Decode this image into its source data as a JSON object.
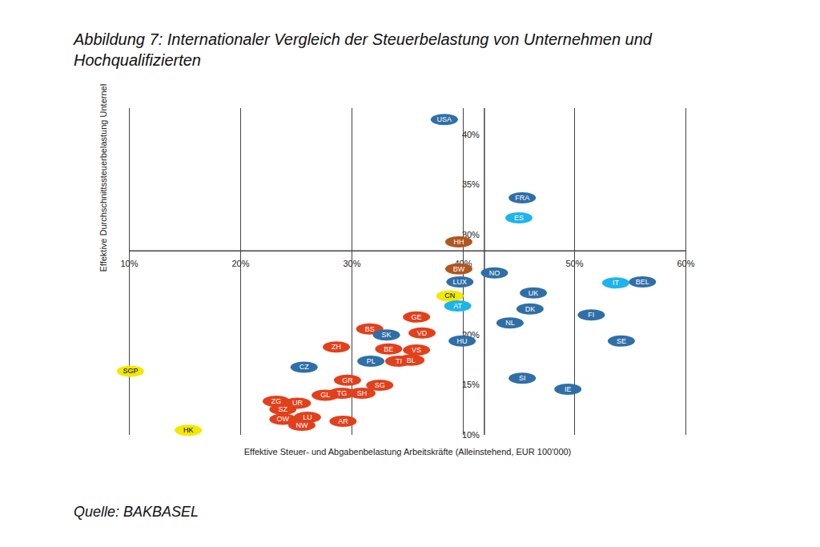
{
  "chart_data": {
    "type": "scatter",
    "title": "Abbildung 7: Internationaler Vergleich der Steuerbelastung von Unternehmen und Hochqualifizierten",
    "caption": "Quelle: BAKBASEL",
    "x_label": "Effektive Steuer- und Abgabenbelastung Arbeitskräfte (Alleinstehend, EUR 100'000)",
    "y_label": "Effektive Durchschnittssteuerbelastung Unternehmen",
    "marker": "ellipse",
    "labels": [
      "USA",
      "FRA",
      "ES",
      "HH",
      "BW",
      "NO",
      "LUX",
      "IT",
      "BEL",
      "CN",
      "UK",
      "AT",
      "DK",
      "FI",
      "NL",
      "GE",
      "BS",
      "SK",
      "VD",
      "HU",
      "SE",
      "ZH",
      "BE",
      "VS",
      "PL",
      "TI",
      "BL",
      "CZ",
      "SGP",
      "SI",
      "GR",
      "IE",
      "SG",
      "TG",
      "SH",
      "GL",
      "ZG",
      "UR",
      "SZ",
      "OW",
      "LU",
      "NW",
      "AR",
      "HK"
    ],
    "x": [
      38.3,
      45.3,
      45.0,
      39.6,
      39.6,
      42.8,
      39.7,
      53.7,
      56.1,
      38.8,
      46.3,
      39.5,
      46.0,
      51.5,
      44.2,
      35.8,
      31.6,
      33.1,
      36.3,
      39.9,
      54.2,
      28.6,
      33.3,
      35.8,
      31.7,
      34.2,
      35.3,
      25.7,
      10.1,
      45.3,
      29.6,
      49.4,
      32.5,
      29.1,
      30.9,
      27.6,
      23.2,
      25.1,
      23.8,
      23.8,
      26.0,
      25.5,
      29.2,
      15.3
    ],
    "y": [
      41.5,
      33.7,
      31.7,
      29.3,
      26.6,
      26.2,
      25.3,
      25.2,
      25.3,
      23.9,
      24.2,
      22.9,
      22.6,
      22.0,
      21.2,
      21.8,
      20.6,
      20.0,
      20.2,
      19.4,
      19.4,
      18.8,
      18.6,
      18.5,
      17.4,
      17.4,
      17.5,
      16.8,
      16.4,
      15.7,
      15.5,
      14.6,
      15.0,
      14.2,
      14.2,
      14.0,
      13.4,
      13.2,
      12.6,
      11.6,
      11.8,
      11.0,
      11.4,
      10.5
    ],
    "colors": [
      "#2f6fa7",
      "#2f6fa7",
      "#1eb4ea",
      "#b0561e",
      "#b0561e",
      "#2f6fa7",
      "#2f6fa7",
      "#1eb4ea",
      "#2f6fa7",
      "#f3e800",
      "#2f6fa7",
      "#1eb4ea",
      "#2f6fa7",
      "#2f6fa7",
      "#2f6fa7",
      "#e2401c",
      "#e2401c",
      "#2f6fa7",
      "#e2401c",
      "#2f6fa7",
      "#2f6fa7",
      "#e2401c",
      "#e2401c",
      "#e2401c",
      "#2f6fa7",
      "#e2401c",
      "#e2401c",
      "#2f6fa7",
      "#f3e800",
      "#2f6fa7",
      "#e2401c",
      "#2f6fa7",
      "#e2401c",
      "#e2401c",
      "#e2401c",
      "#e2401c",
      "#e2401c",
      "#e2401c",
      "#e2401c",
      "#e2401c",
      "#e2401c",
      "#e2401c",
      "#e2401c",
      "#f3e800"
    ],
    "xlim": [
      10,
      60
    ],
    "ylim": [
      10,
      42.6
    ],
    "xticks": [
      {
        "value": 10,
        "label": "10%"
      },
      {
        "value": 20,
        "label": "20%"
      },
      {
        "value": 30,
        "label": "30%"
      },
      {
        "value": 40,
        "label": "40%"
      },
      {
        "value": 50,
        "label": "50%"
      },
      {
        "value": 60,
        "label": "60%"
      }
    ],
    "yticks": [
      {
        "value": 10,
        "label": "10%"
      },
      {
        "value": 15,
        "label": "15%"
      },
      {
        "value": 20,
        "label": "20%"
      },
      {
        "value": 30,
        "label": "30%"
      },
      {
        "value": 35,
        "label": "35%"
      },
      {
        "value": 40,
        "label": "40%"
      }
    ],
    "x_axis_at": 28.4,
    "y_axis_at": 41.9
  }
}
